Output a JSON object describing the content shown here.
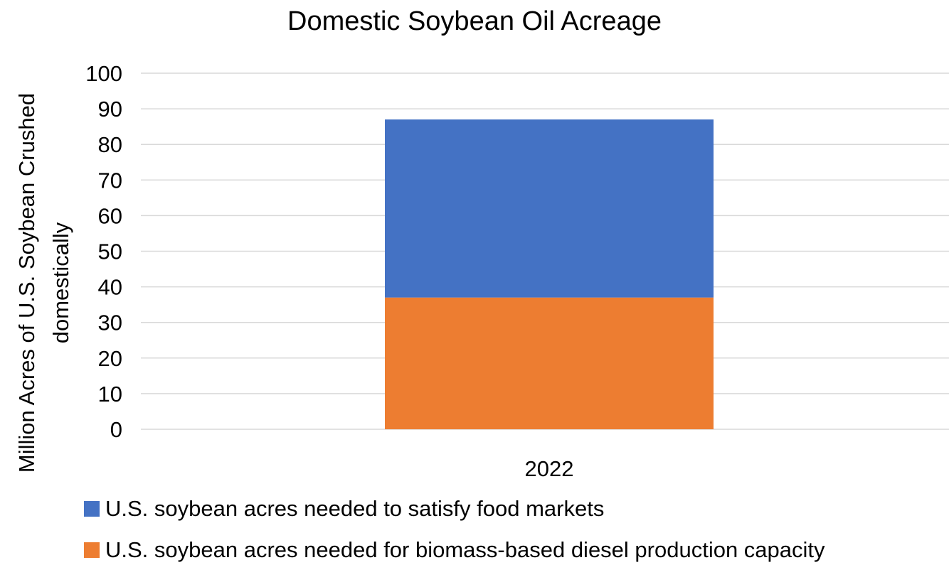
{
  "chart_data": {
    "type": "bar",
    "stacked": true,
    "title": "Domestic Soybean Oil Acreage",
    "ylabel": [
      "Million Acres of U.S. Soybean Crushed",
      "domestically"
    ],
    "xlabel": "",
    "categories": [
      "2022"
    ],
    "ylim": [
      0,
      100
    ],
    "yticks": [
      0,
      10,
      20,
      30,
      40,
      50,
      60,
      70,
      80,
      90,
      100
    ],
    "grid": true,
    "legend_position": "bottom",
    "series": [
      {
        "name": "U.S. soybean acres needed for biomass-based diesel production capacity",
        "values": [
          37
        ],
        "color": "#ED7D31"
      },
      {
        "name": "U.S. soybean acres needed to satisfy food markets",
        "values": [
          50
        ],
        "color": "#4472C4"
      }
    ],
    "legend_order": [
      1,
      0
    ]
  }
}
